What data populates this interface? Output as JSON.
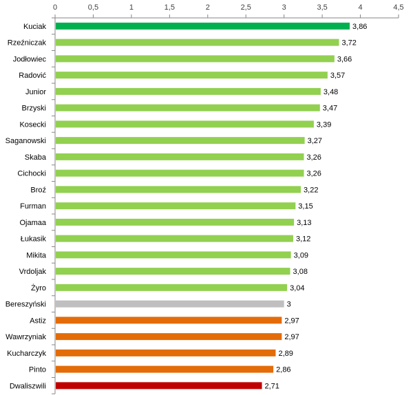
{
  "chart_data": {
    "type": "bar",
    "orientation": "horizontal",
    "title": "",
    "xlabel": "",
    "ylabel": "",
    "xlim": [
      0,
      4.5
    ],
    "x_ticks": [
      "0",
      "0,5",
      "1",
      "1,5",
      "2",
      "2,5",
      "3",
      "3,5",
      "4",
      "4,5"
    ],
    "x_axis_position": "top",
    "grid": false,
    "legend": "none",
    "categories": [
      "Kuciak",
      "Rzeźniczak",
      "Jodłowiec",
      "Radović",
      "Junior",
      "Brzyski",
      "Kosecki",
      "Saganowski",
      "Skaba",
      "Cichocki",
      "Broź",
      "Furman",
      "Ojamaa",
      "Łukasik",
      "Mikita",
      "Vrdoljak",
      "Żyro",
      "Bereszyński",
      "Astiz",
      "Wawrzyniak",
      "Kucharczyk",
      "Pinto",
      "Dwaliszwili"
    ],
    "values": [
      3.86,
      3.72,
      3.66,
      3.57,
      3.48,
      3.47,
      3.39,
      3.27,
      3.26,
      3.26,
      3.22,
      3.15,
      3.13,
      3.12,
      3.09,
      3.08,
      3.04,
      3,
      2.97,
      2.97,
      2.89,
      2.86,
      2.71
    ],
    "value_labels": [
      "3,86",
      "3,72",
      "3,66",
      "3,57",
      "3,48",
      "3,47",
      "3,39",
      "3,27",
      "3,26",
      "3,26",
      "3,22",
      "3,15",
      "3,13",
      "3,12",
      "3,09",
      "3,08",
      "3,04",
      "3",
      "2,97",
      "2,97",
      "2,89",
      "2,86",
      "2,71"
    ],
    "bar_colors": [
      "#00b050",
      "#92d050",
      "#92d050",
      "#92d050",
      "#92d050",
      "#92d050",
      "#92d050",
      "#92d050",
      "#92d050",
      "#92d050",
      "#92d050",
      "#92d050",
      "#92d050",
      "#92d050",
      "#92d050",
      "#92d050",
      "#92d050",
      "#bfbfbf",
      "#e36c09",
      "#e36c09",
      "#e36c09",
      "#e36c09",
      "#c00000"
    ]
  }
}
